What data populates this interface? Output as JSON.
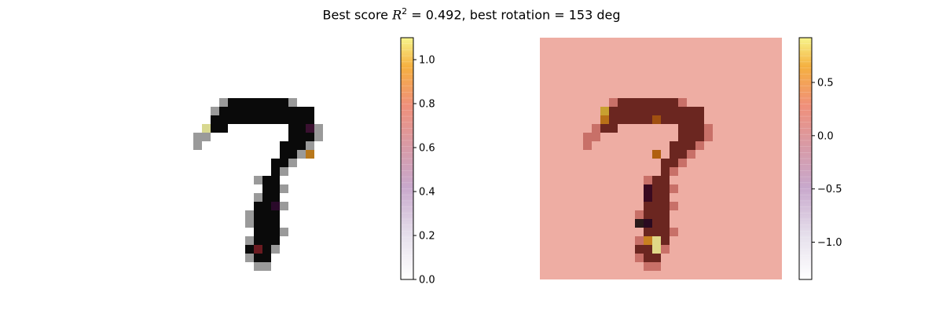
{
  "chart_data": [
    {
      "type": "heatmap",
      "image": "digit-7-grayscale",
      "colorbar": {
        "colormap": "inferno-reversed-bands",
        "range": [
          0.0,
          1.1
        ],
        "ticks": [
          "0.0",
          "0.2",
          "0.4",
          "0.6",
          "0.8",
          "1.0"
        ],
        "tick_values": [
          0.0,
          0.2,
          0.4,
          0.6,
          0.8,
          1.0
        ]
      }
    },
    {
      "type": "heatmap",
      "image": "digit-7-attribution-overlay",
      "colorbar": {
        "colormap": "inferno-reversed-bands",
        "range": [
          -1.35,
          0.92
        ],
        "ticks": [
          "0.5",
          "0.0",
          "−0.5",
          "−1.0"
        ],
        "tick_values": [
          0.5,
          0.0,
          -0.5,
          -1.0
        ]
      }
    }
  ],
  "title": {
    "prefix": "Best score ",
    "r_symbol": "R",
    "r_sup": "2",
    "suffix": " = 0.492, best rotation = 153 deg"
  },
  "colors": {
    "background_right": "#eeada3",
    "stroke_right": "#6b2620",
    "stroke_left": "#0a0a0a"
  }
}
